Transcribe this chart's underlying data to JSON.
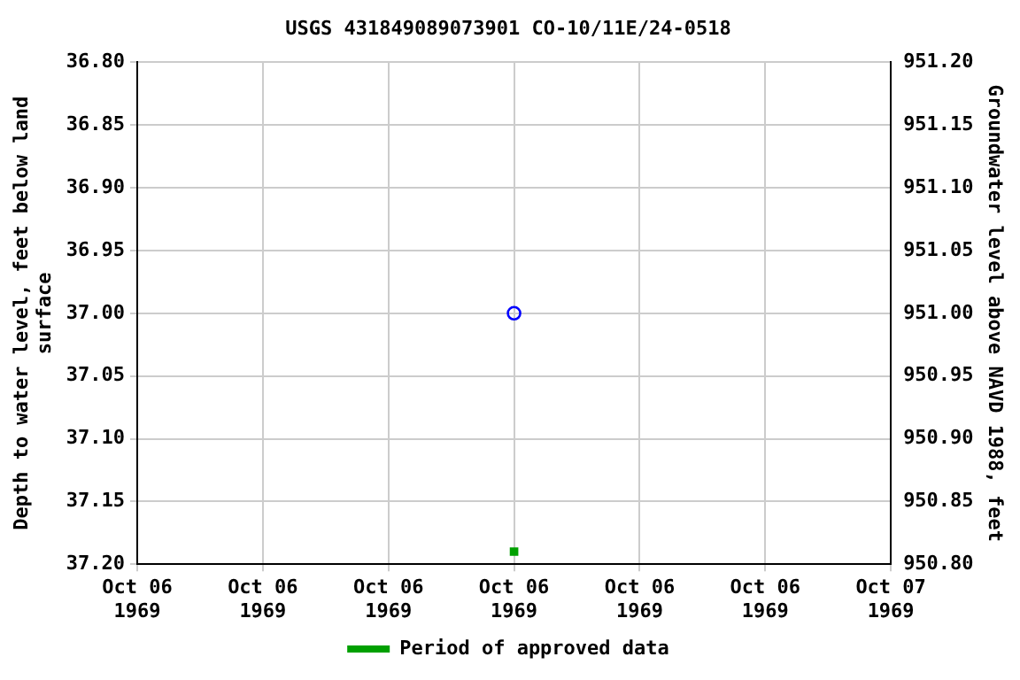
{
  "chart_data": {
    "type": "scatter",
    "title": "USGS 431849089073901 CO-10/11E/24-0518",
    "ylabel": "Depth to water level, feet below land surface",
    "y2label": "Groundwater level above NAVD 1988, feet",
    "series": [
      {
        "color": "#0000ff",
        "marker": "circle",
        "x": [
          "1969-10-06T12:00"
        ],
        "values": [
          37.0
        ]
      },
      {
        "name": "Period of approved data",
        "color": "#00a000",
        "marker": "square",
        "x": [
          "1969-10-06T12:00"
        ],
        "values": [
          37.19
        ]
      }
    ],
    "xlim": [
      "1969-10-06T00:00",
      "1969-10-07T00:00"
    ],
    "xticks": [
      {
        "value": "1969-10-06T00:00",
        "label": "Oct 06\n1969"
      },
      {
        "value": "1969-10-06T04:00",
        "label": "Oct 06\n1969"
      },
      {
        "value": "1969-10-06T08:00",
        "label": "Oct 06\n1969"
      },
      {
        "value": "1969-10-06T12:00",
        "label": "Oct 06\n1969"
      },
      {
        "value": "1969-10-06T16:00",
        "label": "Oct 06\n1969"
      },
      {
        "value": "1969-10-06T20:00",
        "label": "Oct 06\n1969"
      },
      {
        "value": "1969-10-07T00:00",
        "label": "Oct 07\n1969"
      }
    ],
    "ylim": [
      37.2,
      36.8
    ],
    "yticks": [
      {
        "value": 36.8,
        "label": "36.80"
      },
      {
        "value": 36.85,
        "label": "36.85"
      },
      {
        "value": 36.9,
        "label": "36.90"
      },
      {
        "value": 36.95,
        "label": "36.95"
      },
      {
        "value": 37.0,
        "label": "37.00"
      },
      {
        "value": 37.05,
        "label": "37.05"
      },
      {
        "value": 37.1,
        "label": "37.10"
      },
      {
        "value": 37.15,
        "label": "37.15"
      },
      {
        "value": 37.2,
        "label": "37.20"
      }
    ],
    "y2lim": [
      950.8,
      951.2
    ],
    "y2ticks": [
      {
        "value": 950.8,
        "label": "950.80"
      },
      {
        "value": 950.85,
        "label": "950.85"
      },
      {
        "value": 950.9,
        "label": "950.90"
      },
      {
        "value": 950.95,
        "label": "950.95"
      },
      {
        "value": 951.0,
        "label": "951.00"
      },
      {
        "value": 951.05,
        "label": "951.05"
      },
      {
        "value": 951.1,
        "label": "951.10"
      },
      {
        "value": 951.15,
        "label": "951.15"
      },
      {
        "value": 951.2,
        "label": "951.20"
      }
    ],
    "grid": true,
    "legend": "bottom"
  }
}
